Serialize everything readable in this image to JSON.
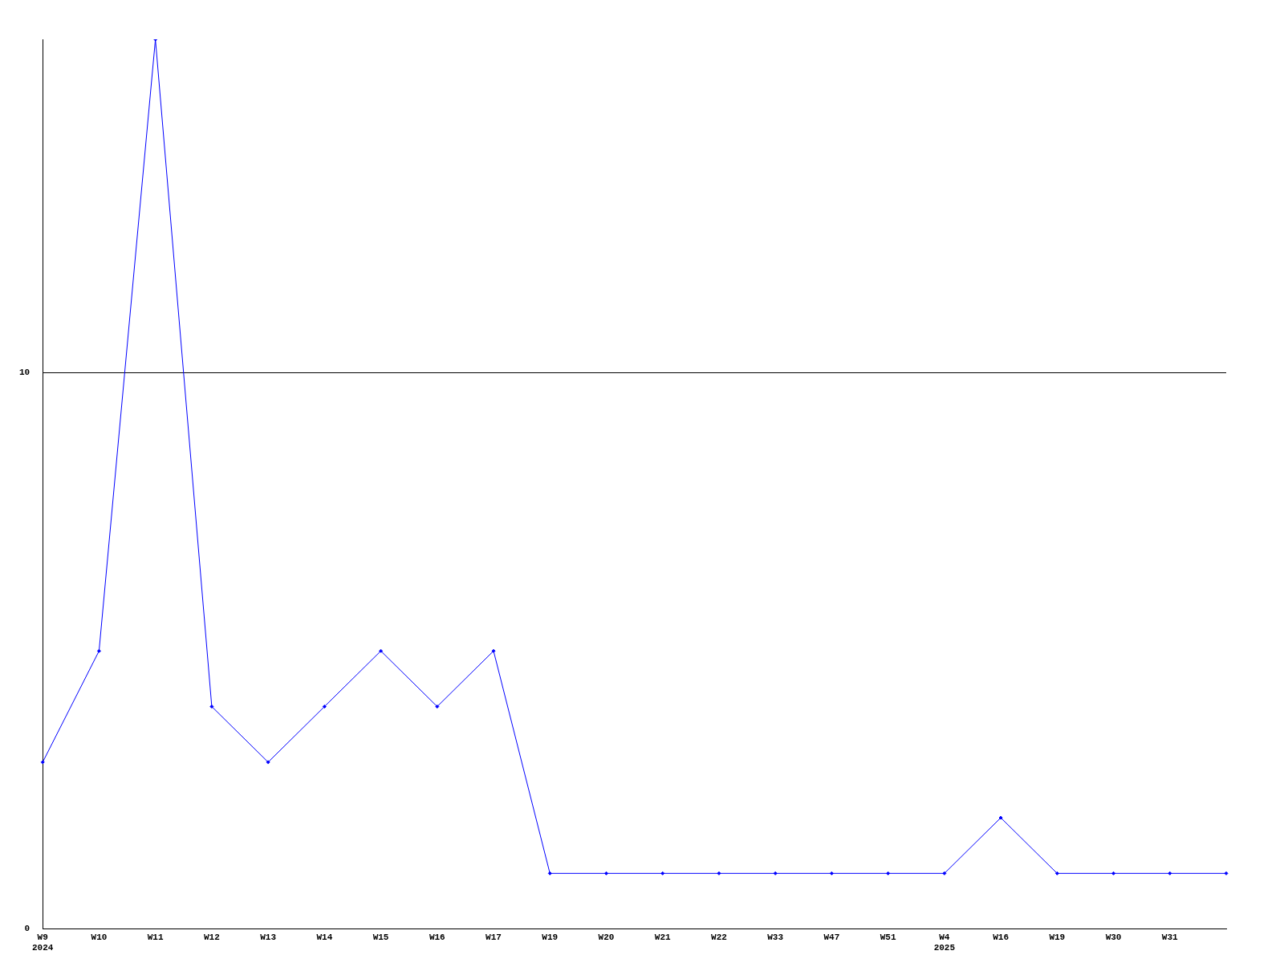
{
  "chart_data": {
    "type": "line",
    "categories": [
      "W9\n2024",
      "W10",
      "W11",
      "W12",
      "W13",
      "W14",
      "W15",
      "W16",
      "W17",
      "W19",
      "W20",
      "W21",
      "W22",
      "W33",
      "W47",
      "W51",
      "W4\n2025",
      "W16",
      "W19",
      "W30",
      "W31",
      null
    ],
    "series": [
      {
        "color": "#0000ff",
        "values": [
          3,
          5,
          16,
          4,
          3,
          4,
          5,
          4,
          5,
          1,
          1,
          1,
          1,
          1,
          1,
          1,
          1,
          2,
          1,
          1,
          1,
          1
        ]
      }
    ],
    "ylim": [
      0,
      16
    ],
    "yticks": [
      0,
      10
    ],
    "grid": "y",
    "legend": false,
    "marker": "diamond",
    "line_style": "solid"
  }
}
